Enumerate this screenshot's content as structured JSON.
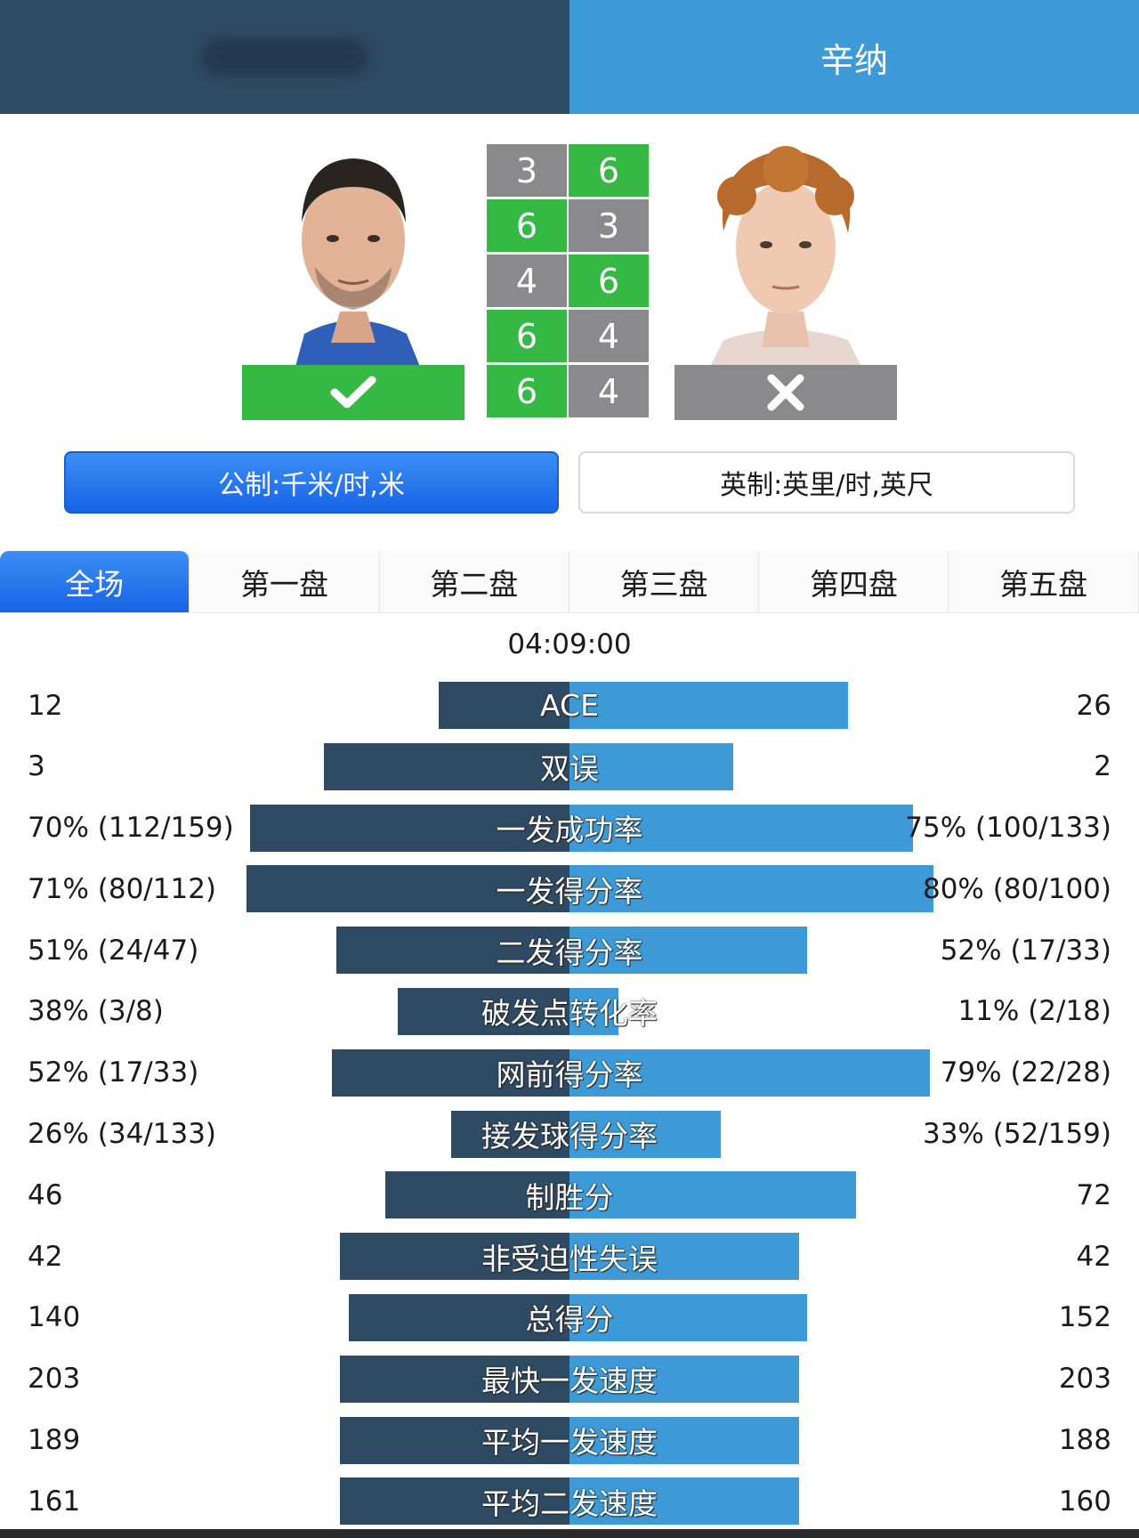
{
  "header": {
    "player_left_name": "",
    "player_right_name": "辛纳"
  },
  "result": {
    "left_icon": "check-icon",
    "right_icon": "cross-icon",
    "colors": {
      "win": "#35b844",
      "lose": "#8a8a8d"
    }
  },
  "sets": [
    {
      "left": "3",
      "right": "6",
      "winner": "right"
    },
    {
      "left": "6",
      "right": "3",
      "winner": "left"
    },
    {
      "left": "4",
      "right": "6",
      "winner": "right"
    },
    {
      "left": "6",
      "right": "4",
      "winner": "left"
    },
    {
      "left": "6",
      "right": "4",
      "winner": "left"
    }
  ],
  "units": {
    "metric_label": "公制:千米/时,米",
    "imperial_label": "英制:英里/时,英尺",
    "selected": "metric"
  },
  "tabs": [
    {
      "label": "全场",
      "active": true
    },
    {
      "label": "第一盘",
      "active": false
    },
    {
      "label": "第二盘",
      "active": false
    },
    {
      "label": "第三盘",
      "active": false
    },
    {
      "label": "第四盘",
      "active": false
    },
    {
      "label": "第五盘",
      "active": false
    }
  ],
  "duration": "04:09:00",
  "colors": {
    "left": "#2f4a63",
    "right": "#3d9ad6",
    "accent": "#1e6ff0"
  },
  "stats": [
    {
      "label": "ACE",
      "left": "12",
      "right": "26",
      "left_share": 0.32,
      "right_share": 0.68
    },
    {
      "label": "双误",
      "left": "3",
      "right": "2",
      "left_share": 0.6,
      "right_share": 0.4
    },
    {
      "label": "一发成功率",
      "left": "70% (112/159)",
      "right": "75% (100/133)",
      "left_share": 0.78,
      "right_share": 0.84
    },
    {
      "label": "一发得分率",
      "left": "71% (80/112)",
      "right": "80% (80/100)",
      "left_share": 0.79,
      "right_share": 0.89
    },
    {
      "label": "二发得分率",
      "left": "51% (24/47)",
      "right": "52% (17/33)",
      "left_share": 0.57,
      "right_share": 0.58
    },
    {
      "label": "破发点转化率",
      "left": "38% (3/8)",
      "right": "11% (2/18)",
      "left_share": 0.42,
      "right_share": 0.12
    },
    {
      "label": "网前得分率",
      "left": "52% (17/33)",
      "right": "79% (22/28)",
      "left_share": 0.58,
      "right_share": 0.88
    },
    {
      "label": "接发球得分率",
      "left": "26% (34/133)",
      "right": "33% (52/159)",
      "left_share": 0.29,
      "right_share": 0.37
    },
    {
      "label": "制胜分",
      "left": "46",
      "right": "72",
      "left_share": 0.45,
      "right_share": 0.7
    },
    {
      "label": "非受迫性失误",
      "left": "42",
      "right": "42",
      "left_share": 0.56,
      "right_share": 0.56
    },
    {
      "label": "总得分",
      "left": "140",
      "right": "152",
      "left_share": 0.54,
      "right_share": 0.58
    },
    {
      "label": "最快一发速度",
      "left": "203",
      "right": "203",
      "left_share": 0.56,
      "right_share": 0.56
    },
    {
      "label": "平均一发速度",
      "left": "189",
      "right": "188",
      "left_share": 0.56,
      "right_share": 0.56
    },
    {
      "label": "平均二发速度",
      "left": "161",
      "right": "160",
      "left_share": 0.56,
      "right_share": 0.56
    }
  ]
}
